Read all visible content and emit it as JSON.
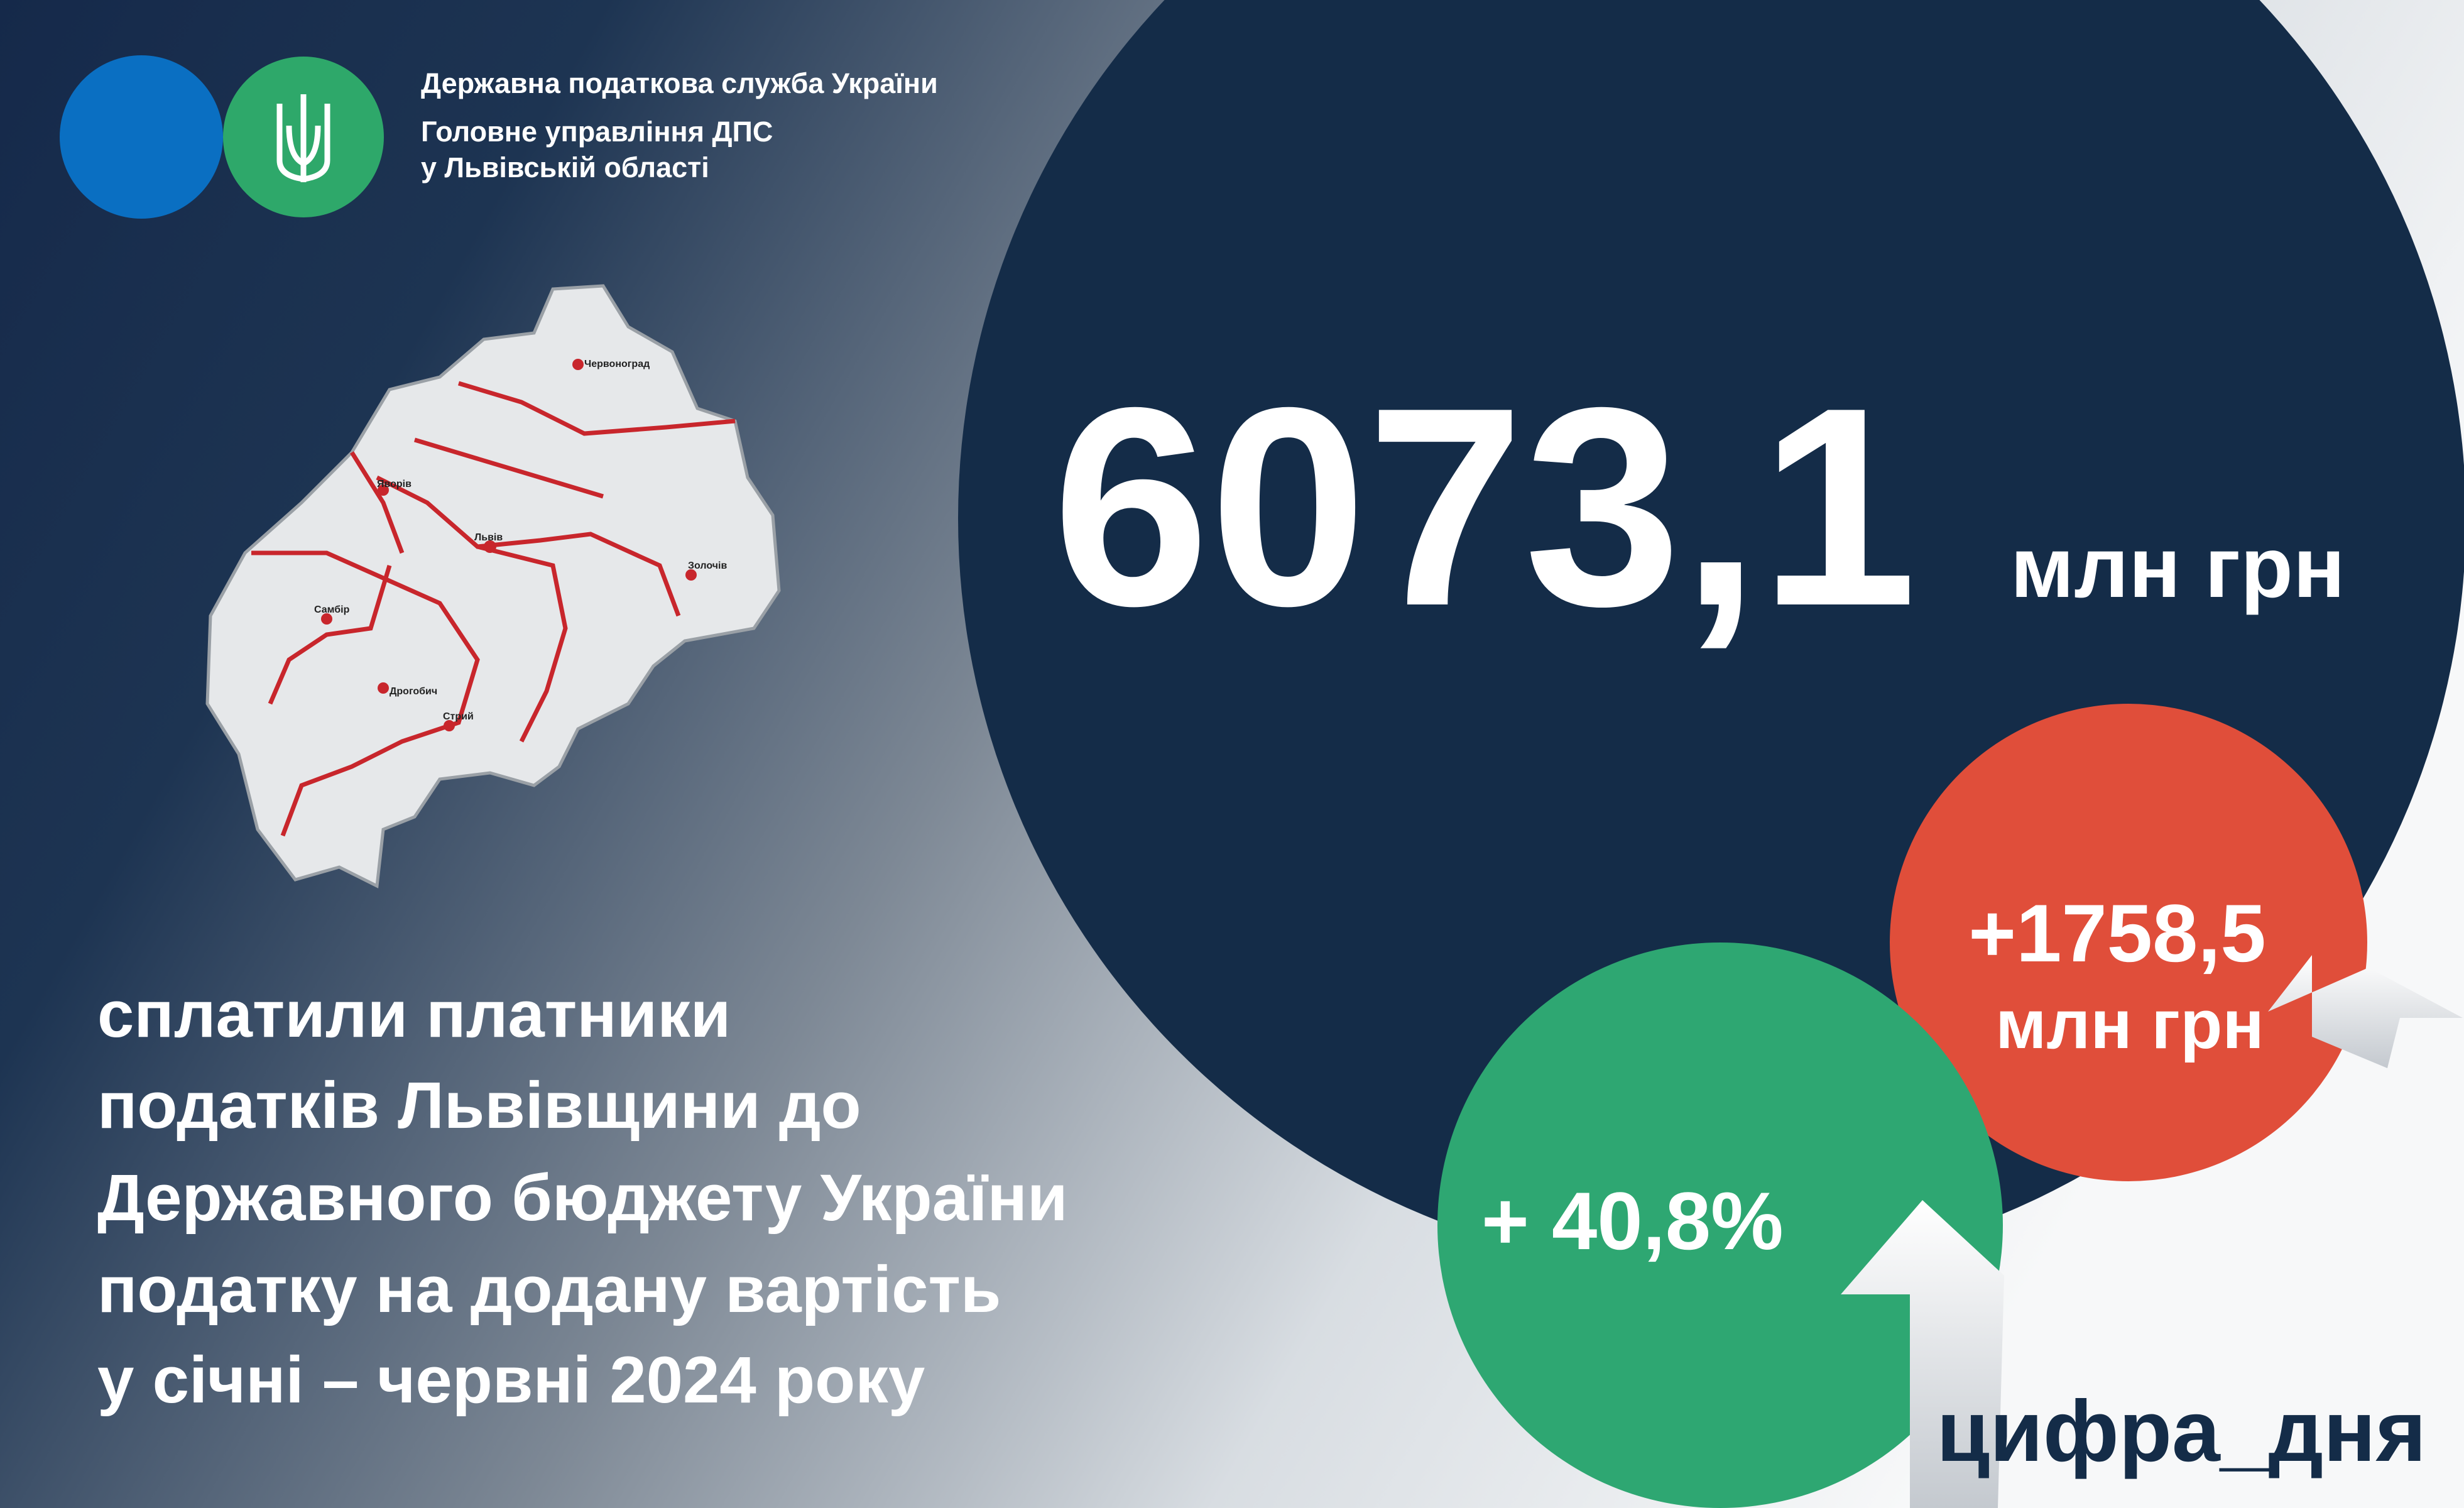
{
  "header": {
    "lines": [
      "Державна податкова служба України",
      "Головне управління ДПС",
      "у Львівській області"
    ]
  },
  "map": {
    "cities": [
      "Червоноград",
      "Яворів",
      "Львів",
      "Золочів",
      "Самбір",
      "Дрогобич",
      "Стрий"
    ]
  },
  "main": {
    "value": "6073,1",
    "unit": "млн грн"
  },
  "increase_abs": {
    "value": "+1758,5",
    "unit": "млн грн"
  },
  "increase_pct": {
    "value": "+ 40,8%"
  },
  "description": {
    "lines": [
      "сплатили платники",
      "податків Львівщини до",
      "Державного бюджету України",
      "податку на додану вартість",
      "у січні – червні 2024 року"
    ]
  },
  "hashtag": "цифра_дня"
}
